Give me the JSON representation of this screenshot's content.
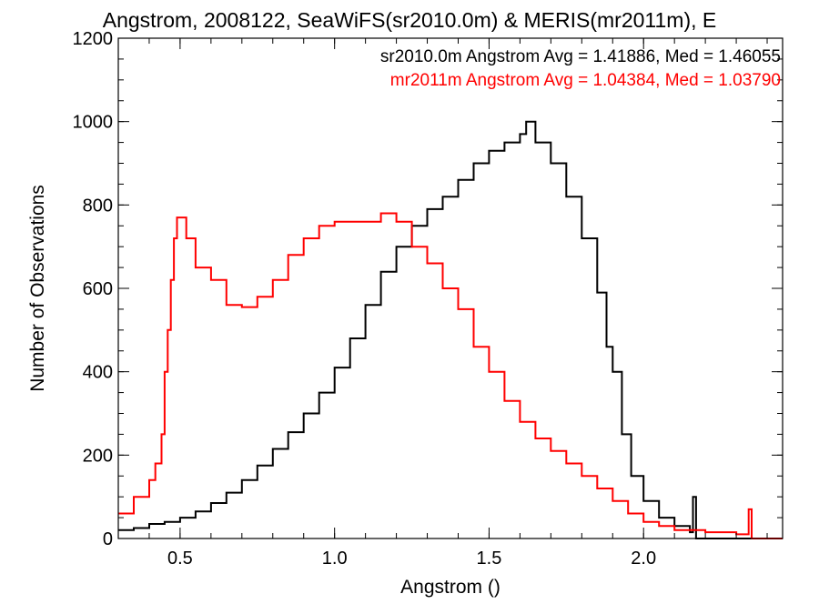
{
  "chart_data": {
    "type": "line",
    "title": "Angstrom, 2008122, SeaWiFS(sr2010.0m) & MERIS(mr2011m), E",
    "xlabel": "Angstrom ()",
    "ylabel": "Number of Observations",
    "xlim": [
      0.3,
      2.45
    ],
    "ylim": [
      0,
      1200
    ],
    "xticks": [
      0.5,
      1.0,
      1.5,
      2.0
    ],
    "xtick_labels": [
      "0.5",
      "1.0",
      "1.5",
      "2.0"
    ],
    "yticks": [
      0,
      200,
      400,
      600,
      800,
      1000,
      1200
    ],
    "ytick_labels": [
      "0",
      "200",
      "400",
      "600",
      "800",
      "1000",
      "1200"
    ],
    "step": true,
    "legend_placement": "top-right",
    "grid": false,
    "series": [
      {
        "name": "sr2010.0m",
        "legend_text": "sr2010.0m Angstrom Avg = 1.41886, Med = 1.46055",
        "color": "#000000",
        "points": [
          [
            0.3,
            20
          ],
          [
            0.35,
            25
          ],
          [
            0.4,
            35
          ],
          [
            0.45,
            40
          ],
          [
            0.5,
            50
          ],
          [
            0.55,
            65
          ],
          [
            0.6,
            85
          ],
          [
            0.65,
            110
          ],
          [
            0.7,
            140
          ],
          [
            0.75,
            175
          ],
          [
            0.8,
            215
          ],
          [
            0.85,
            255
          ],
          [
            0.9,
            300
          ],
          [
            0.95,
            350
          ],
          [
            1.0,
            410
          ],
          [
            1.05,
            480
          ],
          [
            1.1,
            560
          ],
          [
            1.15,
            640
          ],
          [
            1.2,
            700
          ],
          [
            1.25,
            750
          ],
          [
            1.3,
            790
          ],
          [
            1.35,
            820
          ],
          [
            1.4,
            860
          ],
          [
            1.45,
            900
          ],
          [
            1.5,
            930
          ],
          [
            1.55,
            950
          ],
          [
            1.6,
            970
          ],
          [
            1.62,
            1000
          ],
          [
            1.65,
            950
          ],
          [
            1.7,
            900
          ],
          [
            1.75,
            820
          ],
          [
            1.8,
            720
          ],
          [
            1.85,
            590
          ],
          [
            1.88,
            460
          ],
          [
            1.9,
            400
          ],
          [
            1.93,
            250
          ],
          [
            1.96,
            150
          ],
          [
            2.0,
            90
          ],
          [
            2.05,
            50
          ],
          [
            2.1,
            30
          ],
          [
            2.15,
            15
          ],
          [
            2.16,
            100
          ],
          [
            2.17,
            0
          ],
          [
            2.45,
            0
          ]
        ]
      },
      {
        "name": "mr2011m",
        "legend_text": "mr2011m Angstrom Avg = 1.04384, Med = 1.03790",
        "color": "#ff0000",
        "points": [
          [
            0.3,
            60
          ],
          [
            0.35,
            100
          ],
          [
            0.4,
            140
          ],
          [
            0.42,
            180
          ],
          [
            0.44,
            250
          ],
          [
            0.45,
            400
          ],
          [
            0.46,
            500
          ],
          [
            0.47,
            620
          ],
          [
            0.48,
            720
          ],
          [
            0.49,
            770
          ],
          [
            0.52,
            720
          ],
          [
            0.55,
            650
          ],
          [
            0.6,
            620
          ],
          [
            0.65,
            560
          ],
          [
            0.7,
            555
          ],
          [
            0.75,
            580
          ],
          [
            0.8,
            620
          ],
          [
            0.85,
            680
          ],
          [
            0.9,
            720
          ],
          [
            0.95,
            750
          ],
          [
            1.0,
            760
          ],
          [
            1.05,
            760
          ],
          [
            1.1,
            760
          ],
          [
            1.15,
            780
          ],
          [
            1.2,
            760
          ],
          [
            1.25,
            700
          ],
          [
            1.3,
            660
          ],
          [
            1.35,
            600
          ],
          [
            1.4,
            550
          ],
          [
            1.45,
            460
          ],
          [
            1.5,
            400
          ],
          [
            1.55,
            330
          ],
          [
            1.6,
            280
          ],
          [
            1.65,
            240
          ],
          [
            1.7,
            210
          ],
          [
            1.75,
            180
          ],
          [
            1.8,
            150
          ],
          [
            1.85,
            120
          ],
          [
            1.9,
            90
          ],
          [
            1.95,
            60
          ],
          [
            2.0,
            40
          ],
          [
            2.05,
            30
          ],
          [
            2.1,
            20
          ],
          [
            2.15,
            20
          ],
          [
            2.2,
            15
          ],
          [
            2.3,
            10
          ],
          [
            2.34,
            70
          ],
          [
            2.35,
            0
          ],
          [
            2.45,
            0
          ]
        ]
      }
    ]
  }
}
